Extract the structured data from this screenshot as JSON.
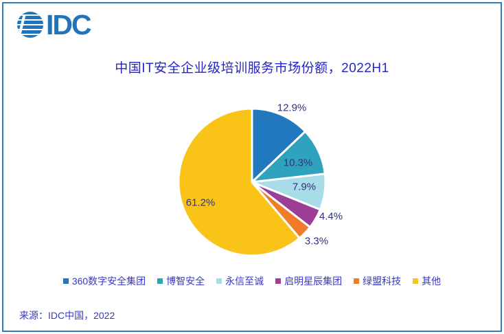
{
  "brand": {
    "logo_text": "IDC",
    "logo_color": "#1F74BC"
  },
  "chart_data": {
    "type": "pie",
    "title": "中国IT安全企业级培训服务市场份额，2022H1",
    "title_color": "#2424CC",
    "label_color": "#31317E",
    "legend_position": "bottom",
    "start_angle_deg": 0,
    "direction": "clockwise",
    "series": [
      {
        "name": "360数字安全集团",
        "value": 12.9,
        "label": "12.9%",
        "color": "#2278BE"
      },
      {
        "name": "博智安全",
        "value": 10.3,
        "label": "10.3%",
        "color": "#2FA3BE"
      },
      {
        "name": "永信至诚",
        "value": 7.9,
        "label": "7.9%",
        "color": "#A8DCE8"
      },
      {
        "name": "启明星辰集团",
        "value": 4.4,
        "label": "4.4%",
        "color": "#9C3D96"
      },
      {
        "name": "绿盟科技",
        "value": 3.3,
        "label": "3.3%",
        "color": "#F07B28"
      },
      {
        "name": "其他",
        "value": 61.2,
        "label": "61.2%",
        "color": "#F9C318"
      }
    ]
  },
  "source": {
    "text": "来源：IDC中国，2022"
  }
}
